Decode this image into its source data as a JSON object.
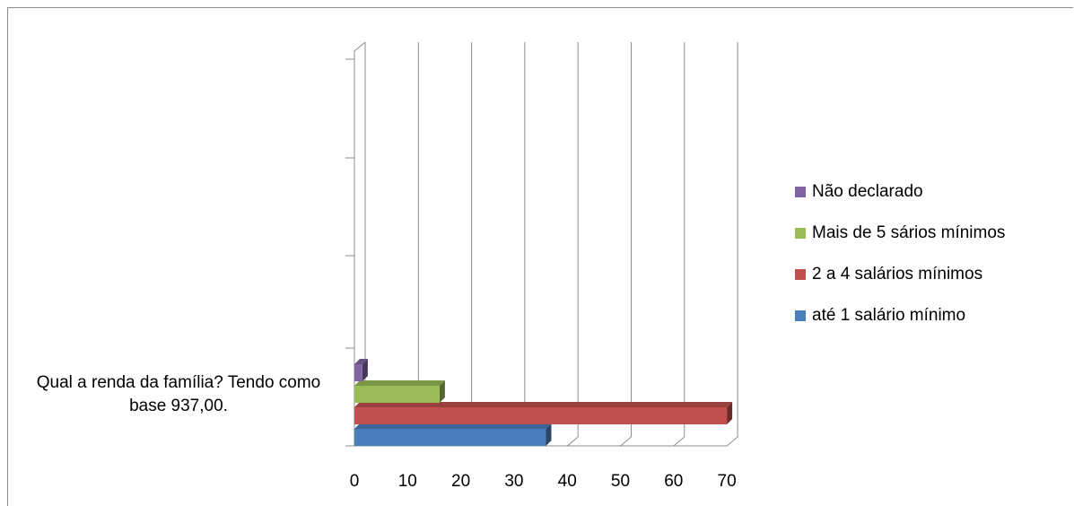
{
  "chart_data": {
    "type": "bar",
    "orientation": "horizontal",
    "three_d": true,
    "categories": [
      "Qual a renda da família? Tendo como base 937,00."
    ],
    "series": [
      {
        "name": "até 1 salário mínimo",
        "values": [
          36
        ],
        "color": "#4a7ebb"
      },
      {
        "name": "2 a 4 salários mínimos",
        "values": [
          70
        ],
        "color": "#c0504d"
      },
      {
        "name": "Mais de 5 sários mínimos",
        "values": [
          16
        ],
        "color": "#9bbb59"
      },
      {
        "name": "Não declarado",
        "values": [
          1.5
        ],
        "color": "#8064a2"
      }
    ],
    "xlim": [
      0,
      70
    ],
    "x_ticks": [
      "0",
      "10",
      "20",
      "30",
      "40",
      "50",
      "60",
      "70"
    ],
    "grid": true,
    "legend_position": "right",
    "legend_order": [
      "Não declarado",
      "Mais de 5 sários mínimos",
      "2 a 4 salários mínimos",
      "até 1 salário mínimo"
    ]
  }
}
